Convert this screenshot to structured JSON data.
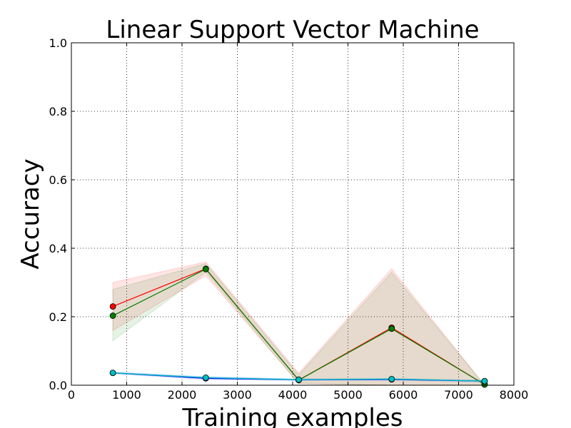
{
  "chart_data": {
    "type": "line",
    "title": "Linear Support Vector Machine",
    "xlabel": "Training examples",
    "ylabel": "Accuracy",
    "xlim": [
      0,
      8000
    ],
    "ylim": [
      0.0,
      1.0
    ],
    "xticks": [
      "0",
      "1000",
      "2000",
      "3000",
      "4000",
      "5000",
      "6000",
      "7000",
      "8000"
    ],
    "yticks": [
      "0.0",
      "0.2",
      "0.4",
      "0.6",
      "0.8",
      "1.0"
    ],
    "grid": true,
    "x": [
      750,
      2430,
      4110,
      5790,
      7470
    ],
    "series": [
      {
        "color": "#ff0000",
        "marker_color": "#ff0000",
        "values": [
          0.23,
          0.34,
          0.015,
          0.168,
          0.002
        ],
        "band_lower": [
          0.16,
          0.32,
          0.005,
          0.0,
          0.0
        ],
        "band_upper": [
          0.3,
          0.36,
          0.035,
          0.34,
          0.0
        ],
        "band_color": "#ff0000"
      },
      {
        "color": "#008000",
        "marker_color": "#008000",
        "values": [
          0.203,
          0.339,
          0.015,
          0.165,
          0.002
        ],
        "band_lower": [
          0.13,
          0.33,
          0.005,
          0.0,
          0.0
        ],
        "band_upper": [
          0.28,
          0.355,
          0.03,
          0.33,
          0.0
        ],
        "band_color": "#008000"
      },
      {
        "color": "#0000ff",
        "marker_color": "#0000ff",
        "values": [
          0.036,
          0.02,
          0.016,
          0.017,
          0.012
        ],
        "band_lower": [
          0.034,
          0.017,
          0.014,
          0.015,
          0.01
        ],
        "band_upper": [
          0.038,
          0.024,
          0.018,
          0.019,
          0.014
        ],
        "band_color": "#0000ff"
      },
      {
        "color": "#00bfbf",
        "marker_color": "#00bfbf",
        "values": [
          0.036,
          0.022,
          0.016,
          0.018,
          0.012
        ],
        "band_lower": [
          0.034,
          0.019,
          0.014,
          0.016,
          0.01
        ],
        "band_upper": [
          0.038,
          0.025,
          0.018,
          0.02,
          0.014
        ],
        "band_color": "#00bfbf"
      }
    ]
  }
}
